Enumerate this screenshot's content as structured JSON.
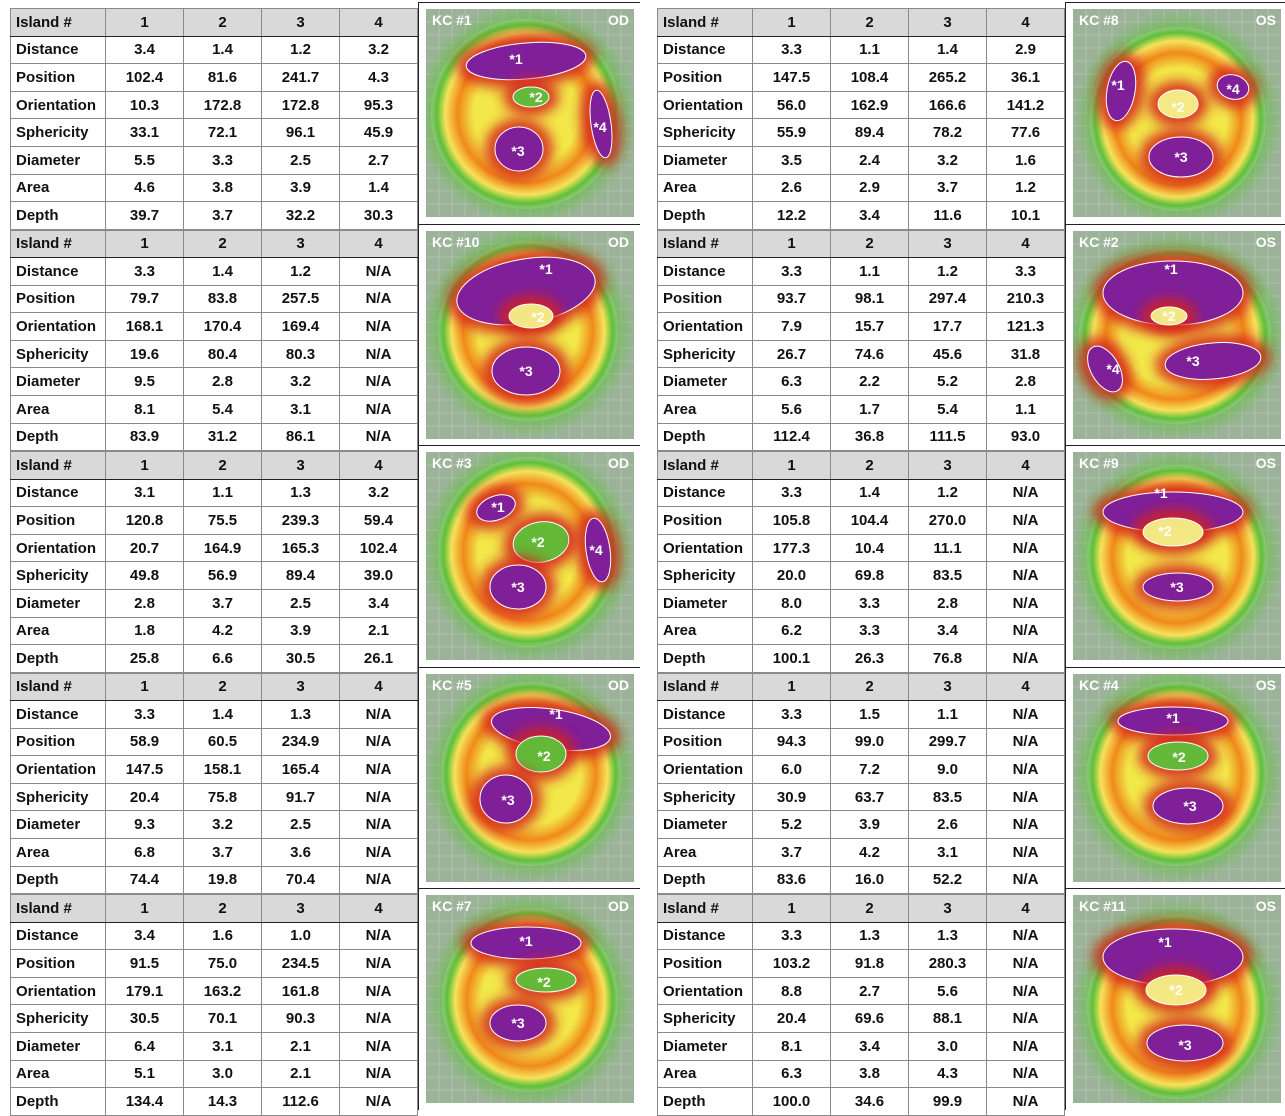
{
  "row_labels": [
    "Island #",
    "Distance",
    "Position",
    "Orientation",
    "Sphericity",
    "Diameter",
    "Area",
    "Depth"
  ],
  "panels": [
    {
      "id": "KC #1",
      "eye": "OD",
      "islands": [
        "1",
        "2",
        "3",
        "4"
      ],
      "rows": [
        [
          "3.4",
          "1.4",
          "1.2",
          "3.2"
        ],
        [
          "102.4",
          "81.6",
          "241.7",
          "4.3"
        ],
        [
          "10.3",
          "172.8",
          "172.8",
          "95.3"
        ],
        [
          "33.1",
          "72.1",
          "96.1",
          "45.9"
        ],
        [
          "5.5",
          "3.3",
          "2.5",
          "2.7"
        ],
        [
          "4.6",
          "3.8",
          "3.9",
          "1.4"
        ],
        [
          "39.7",
          "3.7",
          "32.2",
          "30.3"
        ]
      ],
      "marker_labels": [
        "*1",
        "*2",
        "*3",
        "*4"
      ]
    },
    {
      "id": "KC #8",
      "eye": "OS",
      "islands": [
        "1",
        "2",
        "3",
        "4"
      ],
      "rows": [
        [
          "3.3",
          "1.1",
          "1.4",
          "2.9"
        ],
        [
          "147.5",
          "108.4",
          "265.2",
          "36.1"
        ],
        [
          "56.0",
          "162.9",
          "166.6",
          "141.2"
        ],
        [
          "55.9",
          "89.4",
          "78.2",
          "77.6"
        ],
        [
          "3.5",
          "2.4",
          "3.2",
          "1.6"
        ],
        [
          "2.6",
          "2.9",
          "3.7",
          "1.2"
        ],
        [
          "12.2",
          "3.4",
          "11.6",
          "10.1"
        ]
      ],
      "marker_labels": [
        "*1",
        "*2",
        "*3",
        "*4"
      ]
    },
    {
      "id": "KC #10",
      "eye": "OD",
      "islands": [
        "1",
        "2",
        "3",
        "4"
      ],
      "rows": [
        [
          "3.3",
          "1.4",
          "1.2",
          "N/A"
        ],
        [
          "79.7",
          "83.8",
          "257.5",
          "N/A"
        ],
        [
          "168.1",
          "170.4",
          "169.4",
          "N/A"
        ],
        [
          "19.6",
          "80.4",
          "80.3",
          "N/A"
        ],
        [
          "9.5",
          "2.8",
          "3.2",
          "N/A"
        ],
        [
          "8.1",
          "5.4",
          "3.1",
          "N/A"
        ],
        [
          "83.9",
          "31.2",
          "86.1",
          "N/A"
        ]
      ],
      "marker_labels": [
        "*1",
        "*2",
        "*3"
      ]
    },
    {
      "id": "KC #2",
      "eye": "OS",
      "islands": [
        "1",
        "2",
        "3",
        "4"
      ],
      "rows": [
        [
          "3.3",
          "1.1",
          "1.2",
          "3.3"
        ],
        [
          "93.7",
          "98.1",
          "297.4",
          "210.3"
        ],
        [
          "7.9",
          "15.7",
          "17.7",
          "121.3"
        ],
        [
          "26.7",
          "74.6",
          "45.6",
          "31.8"
        ],
        [
          "6.3",
          "2.2",
          "5.2",
          "2.8"
        ],
        [
          "5.6",
          "1.7",
          "5.4",
          "1.1"
        ],
        [
          "112.4",
          "36.8",
          "111.5",
          "93.0"
        ]
      ],
      "marker_labels": [
        "*1",
        "*2",
        "*3",
        "*4"
      ]
    },
    {
      "id": "KC #3",
      "eye": "OD",
      "islands": [
        "1",
        "2",
        "3",
        "4"
      ],
      "rows": [
        [
          "3.1",
          "1.1",
          "1.3",
          "3.2"
        ],
        [
          "120.8",
          "75.5",
          "239.3",
          "59.4"
        ],
        [
          "20.7",
          "164.9",
          "165.3",
          "102.4"
        ],
        [
          "49.8",
          "56.9",
          "89.4",
          "39.0"
        ],
        [
          "2.8",
          "3.7",
          "2.5",
          "3.4"
        ],
        [
          "1.8",
          "4.2",
          "3.9",
          "2.1"
        ],
        [
          "25.8",
          "6.6",
          "30.5",
          "26.1"
        ]
      ],
      "marker_labels": [
        "*1",
        "*2",
        "*3",
        "*4"
      ]
    },
    {
      "id": "KC #9",
      "eye": "OS",
      "islands": [
        "1",
        "2",
        "3",
        "4"
      ],
      "rows": [
        [
          "3.3",
          "1.4",
          "1.2",
          "N/A"
        ],
        [
          "105.8",
          "104.4",
          "270.0",
          "N/A"
        ],
        [
          "177.3",
          "10.4",
          "11.1",
          "N/A"
        ],
        [
          "20.0",
          "69.8",
          "83.5",
          "N/A"
        ],
        [
          "8.0",
          "3.3",
          "2.8",
          "N/A"
        ],
        [
          "6.2",
          "3.3",
          "3.4",
          "N/A"
        ],
        [
          "100.1",
          "26.3",
          "76.8",
          "N/A"
        ]
      ],
      "marker_labels": [
        "*1",
        "*2",
        "*3"
      ]
    },
    {
      "id": "KC #5",
      "eye": "OD",
      "islands": [
        "1",
        "2",
        "3",
        "4"
      ],
      "rows": [
        [
          "3.3",
          "1.4",
          "1.3",
          "N/A"
        ],
        [
          "58.9",
          "60.5",
          "234.9",
          "N/A"
        ],
        [
          "147.5",
          "158.1",
          "165.4",
          "N/A"
        ],
        [
          "20.4",
          "75.8",
          "91.7",
          "N/A"
        ],
        [
          "9.3",
          "3.2",
          "2.5",
          "N/A"
        ],
        [
          "6.8",
          "3.7",
          "3.6",
          "N/A"
        ],
        [
          "74.4",
          "19.8",
          "70.4",
          "N/A"
        ]
      ],
      "marker_labels": [
        "*1",
        "*2",
        "*3"
      ]
    },
    {
      "id": "KC #4",
      "eye": "OS",
      "islands": [
        "1",
        "2",
        "3",
        "4"
      ],
      "rows": [
        [
          "3.3",
          "1.5",
          "1.1",
          "N/A"
        ],
        [
          "94.3",
          "99.0",
          "299.7",
          "N/A"
        ],
        [
          "6.0",
          "7.2",
          "9.0",
          "N/A"
        ],
        [
          "30.9",
          "63.7",
          "83.5",
          "N/A"
        ],
        [
          "5.2",
          "3.9",
          "2.6",
          "N/A"
        ],
        [
          "3.7",
          "4.2",
          "3.1",
          "N/A"
        ],
        [
          "83.6",
          "16.0",
          "52.2",
          "N/A"
        ]
      ],
      "marker_labels": [
        "*1",
        "*2",
        "*3"
      ]
    },
    {
      "id": "KC #7",
      "eye": "OD",
      "islands": [
        "1",
        "2",
        "3",
        "4"
      ],
      "rows": [
        [
          "3.4",
          "1.6",
          "1.0",
          "N/A"
        ],
        [
          "91.5",
          "75.0",
          "234.5",
          "N/A"
        ],
        [
          "179.1",
          "163.2",
          "161.8",
          "N/A"
        ],
        [
          "30.5",
          "70.1",
          "90.3",
          "N/A"
        ],
        [
          "6.4",
          "3.1",
          "2.1",
          "N/A"
        ],
        [
          "5.1",
          "3.0",
          "2.1",
          "N/A"
        ],
        [
          "134.4",
          "14.3",
          "112.6",
          "N/A"
        ]
      ],
      "marker_labels": [
        "*1",
        "*2",
        "*3"
      ]
    },
    {
      "id": "KC #11",
      "eye": "OS",
      "islands": [
        "1",
        "2",
        "3",
        "4"
      ],
      "rows": [
        [
          "3.3",
          "1.3",
          "1.3",
          "N/A"
        ],
        [
          "103.2",
          "91.8",
          "280.3",
          "N/A"
        ],
        [
          "8.8",
          "2.7",
          "5.6",
          "N/A"
        ],
        [
          "20.4",
          "69.6",
          "88.1",
          "N/A"
        ],
        [
          "8.1",
          "3.4",
          "3.0",
          "N/A"
        ],
        [
          "6.3",
          "3.8",
          "4.3",
          "N/A"
        ],
        [
          "100.0",
          "34.6",
          "99.9",
          "N/A"
        ]
      ],
      "marker_labels": [
        "*1",
        "*2",
        "*3"
      ]
    }
  ],
  "colors": {
    "grid_bg": "#9cb39a",
    "grid_line": "#b5c7b2",
    "label_text": "#ffffff",
    "purple": "#7a1fa0",
    "red": "#d4201c",
    "orange": "#f08a1a",
    "yellow": "#f2e84a",
    "green": "#5ec03a"
  }
}
